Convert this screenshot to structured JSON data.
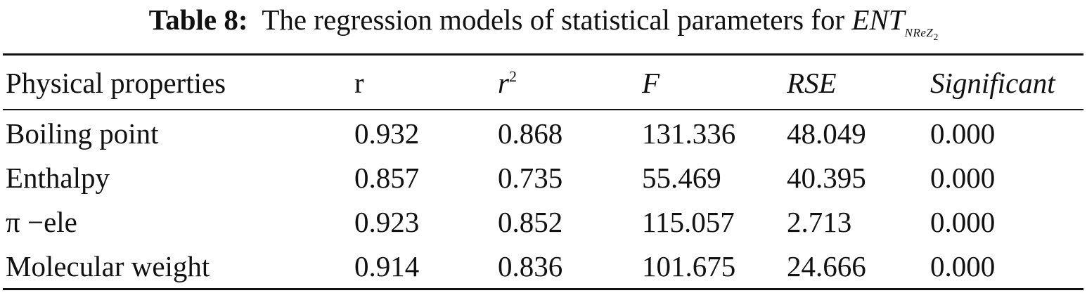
{
  "caption": {
    "label": "Table 8:",
    "text": "The regression models of statistical parameters for",
    "symbol": "ENT",
    "symbol_subscript": "NReZ",
    "symbol_subsubscript": "2"
  },
  "table": {
    "headers": {
      "property": "Physical properties",
      "r": "r",
      "r2_base": "r",
      "r2_exp": "2",
      "f": "F",
      "rse": "RSE",
      "significant": "Significant"
    },
    "rows": [
      {
        "property": "Boiling point",
        "r": "0.932",
        "r2": "0.868",
        "f": "131.336",
        "rse": "48.049",
        "significant": "0.000"
      },
      {
        "property": "Enthalpy",
        "r": "0.857",
        "r2": "0.735",
        "f": "55.469",
        "rse": "40.395",
        "significant": "0.000"
      },
      {
        "property": "π −ele",
        "r": "0.923",
        "r2": "0.852",
        "f": "115.057",
        "rse": "2.713",
        "significant": "0.000"
      },
      {
        "property": "Molecular weight",
        "r": "0.914",
        "r2": "0.836",
        "f": "101.675",
        "rse": "24.666",
        "significant": "0.000"
      }
    ]
  }
}
